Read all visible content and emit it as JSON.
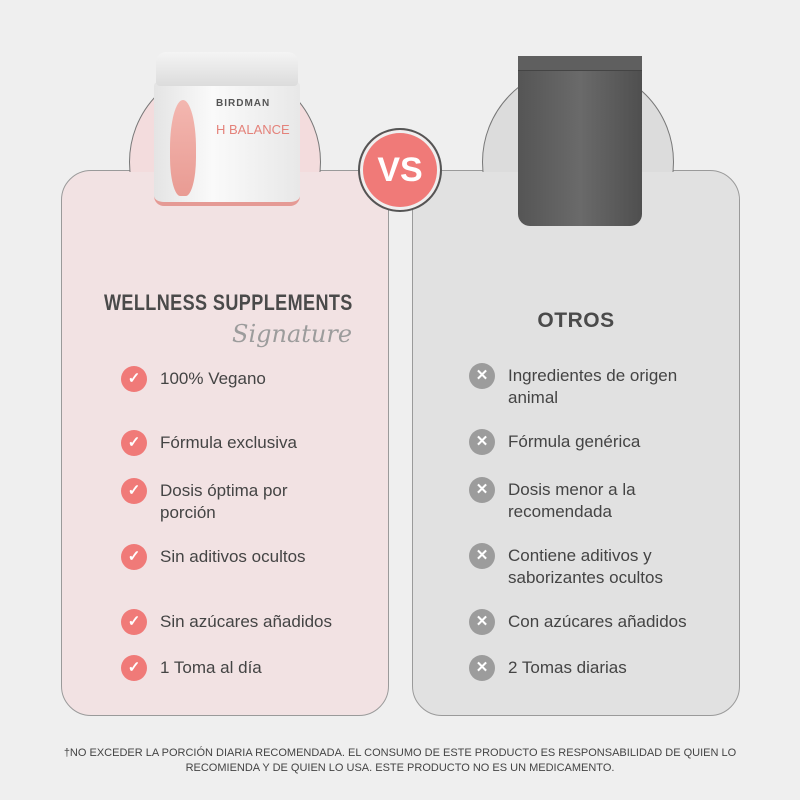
{
  "vs_label": "VS",
  "left": {
    "product_brand": "BIRDMAN",
    "product_name": "H BALANCE",
    "title": "WELLNESS SUPPLEMENTS",
    "signature": "Signature",
    "items": [
      "100% Vegano",
      "Fórmula exclusiva",
      "Dosis óptima por porción",
      "Sin aditivos ocultos",
      "Sin azúcares añadidos",
      "1 Toma al día"
    ]
  },
  "right": {
    "title": "OTROS",
    "items": [
      "Ingredientes de origen animal",
      "Fórmula genérica",
      "Dosis menor a la recomendada",
      "Contiene aditivos y saborizantes ocultos",
      "Con azúcares añadidos",
      "2 Tomas diarias"
    ]
  },
  "footer": "†NO EXCEDER LA PORCIÓN DIARIA RECOMENDADA. EL CONSUMO DE ESTE PRODUCTO ES RESPONSABILIDAD DE QUIEN LO RECOMIENDA Y DE QUIEN LO USA. ESTE PRODUCTO NO ES UN MEDICAMENTO.",
  "colors": {
    "accent": "#f07a78",
    "left_bg": "#f2e2e3",
    "right_bg": "#e1e1e1",
    "neutral_icon": "#9c9c9c"
  },
  "icons": {
    "left": "check-icon",
    "right": "x-icon"
  }
}
